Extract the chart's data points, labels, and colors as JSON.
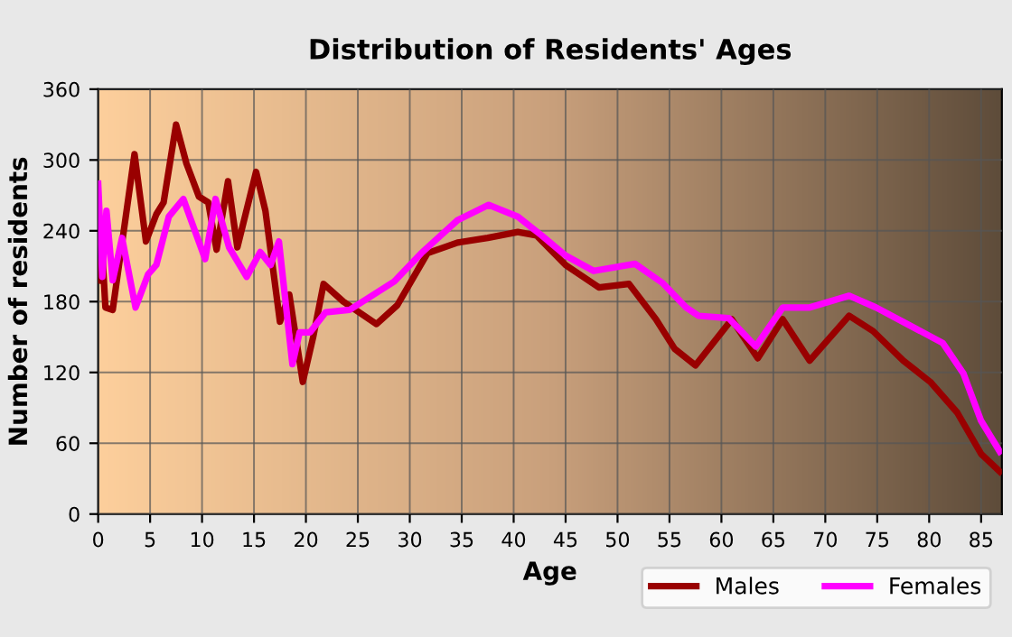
{
  "chart_data": {
    "type": "line",
    "title": "Distribution of Residents' Ages",
    "xlabel": "Age",
    "ylabel": "Number of residents",
    "xlim": [
      0,
      87
    ],
    "xticks": [
      0,
      5,
      10,
      15,
      20,
      25,
      30,
      35,
      40,
      45,
      50,
      55,
      60,
      65,
      70,
      75,
      80,
      85
    ],
    "ylim": [
      0,
      360
    ],
    "yticks": [
      0,
      60,
      120,
      180,
      240,
      300,
      360
    ],
    "grid": true,
    "legend": "bottom right",
    "series": [
      {
        "name": "Males",
        "color": "#990000",
        "x": [
          0,
          0.4,
          0.7,
          1.4,
          3.5,
          4.6,
          5.6,
          6.3,
          7.5,
          8.5,
          9.7,
          10.6,
          11.4,
          12.5,
          13.4,
          15.2,
          16.1,
          17.5,
          18.4,
          19.7,
          20.7,
          21.7,
          23.6,
          26.8,
          28.8,
          31.7,
          34.6,
          37.5,
          40.4,
          42.2,
          45.0,
          48.2,
          51.1,
          53.7,
          55.5,
          57.5,
          61.0,
          63.5,
          65.9,
          68.5,
          72.3,
          74.6,
          77.5,
          80.1,
          82.7,
          85.0,
          86.8
        ],
        "values": [
          198,
          221,
          175,
          173,
          305,
          231,
          254,
          264,
          330,
          297,
          269,
          264,
          224,
          282,
          226,
          290,
          257,
          163,
          186,
          112,
          150,
          195,
          180,
          161,
          177,
          221,
          230,
          234,
          239,
          236,
          211,
          192,
          195,
          165,
          140,
          126,
          165,
          132,
          165,
          130,
          168,
          155,
          130,
          112,
          86,
          51,
          36
        ]
      },
      {
        "name": "Females",
        "color": "#ff00ff",
        "x": [
          0,
          0.4,
          0.8,
          1.4,
          2.3,
          3.6,
          4.8,
          5.6,
          6.8,
          8.2,
          10.3,
          11.3,
          12.6,
          14.3,
          15.6,
          16.6,
          17.4,
          18.7,
          19.4,
          20.4,
          21.9,
          24.2,
          28.5,
          31.1,
          34.6,
          37.6,
          40.4,
          42.7,
          45.0,
          47.7,
          51.7,
          54.3,
          56.6,
          57.8,
          60.7,
          63.3,
          65.9,
          68.5,
          72.3,
          74.9,
          78.1,
          81.3,
          83.3,
          85.0,
          86.8
        ],
        "values": [
          280,
          201,
          257,
          198,
          234,
          175,
          203,
          211,
          252,
          267,
          216,
          267,
          226,
          201,
          222,
          211,
          231,
          127,
          154,
          154,
          171,
          173,
          197,
          221,
          249,
          262,
          252,
          236,
          219,
          206,
          212,
          196,
          175,
          168,
          166,
          142,
          175,
          175,
          185,
          175,
          160,
          145,
          119,
          79,
          53
        ]
      }
    ]
  }
}
